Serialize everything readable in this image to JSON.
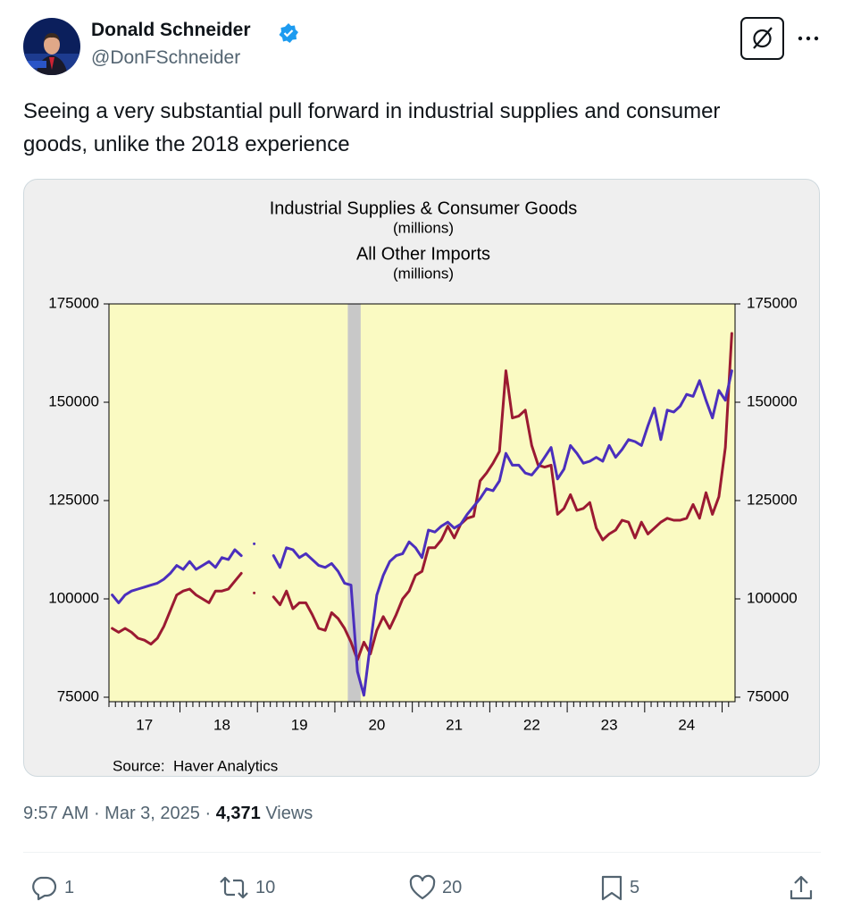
{
  "tweet": {
    "author": "Donald Schneider",
    "handle": "@DonFSchneider",
    "text": "Seeing a very substantial pull forward in industrial supplies and consumer goods, unlike the 2018 experience",
    "time": "9:57 AM",
    "date": "Mar 3, 2025",
    "views": "4,371",
    "views_label": "Views",
    "replies": 1,
    "reposts": 10,
    "likes": 20,
    "bookmarks": 5
  },
  "chart_data": {
    "type": "line",
    "source": "Source:  Haver Analytics",
    "categories": [
      null,
      null,
      null,
      null,
      null,
      "17",
      null,
      null,
      null,
      null,
      null,
      null,
      null,
      null,
      null,
      null,
      null,
      "18",
      null,
      null,
      null,
      null,
      null,
      null,
      null,
      null,
      null,
      null,
      null,
      "19",
      null,
      null,
      null,
      null,
      null,
      null,
      null,
      null,
      null,
      null,
      null,
      "20",
      null,
      null,
      null,
      null,
      null,
      null,
      null,
      null,
      null,
      null,
      null,
      "21",
      null,
      null,
      null,
      null,
      null,
      null,
      null,
      null,
      null,
      null,
      null,
      "22",
      null,
      null,
      null,
      null,
      null,
      null,
      null,
      null,
      null,
      null,
      null,
      "23",
      null,
      null,
      null,
      null,
      null,
      null,
      null,
      null,
      null,
      null,
      null,
      "24",
      null,
      null,
      null,
      null,
      null,
      null,
      null
    ],
    "series": [
      {
        "name": "Industrial Supplies & Consumer Goods",
        "unit": "(millions)",
        "color": "#9b1a32",
        "values": [
          92500,
          91500,
          92500,
          91500,
          90000,
          89500,
          88500,
          90000,
          93000,
          97000,
          101000,
          102000,
          102500,
          101000,
          100000,
          99000,
          102000,
          102000,
          102500,
          104500,
          106500,
          null,
          101500,
          null,
          null,
          100500,
          98500,
          102000,
          97500,
          99000,
          99000,
          96000,
          92500,
          92000,
          96500,
          95000,
          92500,
          89000,
          84500,
          89000,
          86000,
          92000,
          95500,
          92500,
          96000,
          100000,
          102000,
          106000,
          107000,
          113000,
          113000,
          115000,
          118500,
          115500,
          119000,
          120500,
          121000,
          130000,
          132000,
          134500,
          137500,
          158000,
          146000,
          146500,
          148000,
          139000,
          134000,
          133500,
          134000,
          121500,
          123000,
          126500,
          122500,
          123000,
          124500,
          118000,
          115000,
          116500,
          117500,
          120000,
          119500,
          115500,
          119500,
          116500,
          118000,
          119500,
          120500,
          120000,
          120000,
          120500,
          124000,
          120500,
          127000,
          121500,
          126000,
          138500,
          167500
        ]
      },
      {
        "name": "All Other Imports",
        "unit": "(millions)",
        "color": "#4b2fbd",
        "values": [
          101000,
          99000,
          101000,
          102000,
          102500,
          103000,
          103500,
          104000,
          105000,
          106500,
          108500,
          107500,
          109500,
          107500,
          108500,
          109500,
          108000,
          110500,
          110000,
          112500,
          111000,
          null,
          114000,
          null,
          null,
          111000,
          108000,
          113000,
          112500,
          110500,
          111500,
          110000,
          108500,
          108000,
          109000,
          107000,
          104000,
          103500,
          81500,
          75500,
          88500,
          101000,
          106000,
          109500,
          111000,
          111500,
          114500,
          113000,
          110500,
          117500,
          117000,
          118500,
          119500,
          118000,
          119000,
          121500,
          123500,
          125500,
          128000,
          127500,
          130000,
          137000,
          134000,
          134000,
          132000,
          131500,
          133500,
          136000,
          138500,
          130500,
          133000,
          139000,
          137000,
          134500,
          135000,
          136000,
          135000,
          139000,
          136000,
          138000,
          140500,
          140000,
          139000,
          144000,
          148500,
          140500,
          148000,
          147500,
          149000,
          152000,
          151500,
          155500,
          150500,
          146000,
          153000,
          150500,
          158000
        ]
      }
    ],
    "ylim": [
      75000,
      175000
    ],
    "yticks": [
      75000,
      100000,
      125000,
      150000,
      175000
    ],
    "y2lim": [
      75000,
      175000
    ],
    "y2ticks": [
      75000,
      100000,
      125000,
      150000,
      175000
    ],
    "shaded_categories": [
      37,
      38
    ],
    "shade_color": "#c8c8c8",
    "plot_color": "#fafac2"
  }
}
